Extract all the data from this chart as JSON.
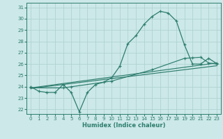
{
  "xlabel": "Humidex (Indice chaleur)",
  "bg_color": "#cce8e8",
  "grid_color": "#aacfcf",
  "line_color": "#2d7d6e",
  "xlim": [
    -0.5,
    23.5
  ],
  "ylim": [
    21.6,
    31.4
  ],
  "yticks": [
    22,
    23,
    24,
    25,
    26,
    27,
    28,
    29,
    30,
    31
  ],
  "xticks": [
    0,
    1,
    2,
    3,
    4,
    5,
    6,
    7,
    8,
    9,
    10,
    11,
    12,
    13,
    14,
    15,
    16,
    17,
    18,
    19,
    20,
    21,
    22,
    23
  ],
  "line1_x": [
    0,
    1,
    2,
    3,
    4,
    5,
    6,
    7,
    8,
    9,
    10,
    11,
    12,
    13,
    14,
    15,
    16,
    17,
    18,
    19,
    20,
    21,
    22,
    23
  ],
  "line1_y": [
    24.0,
    23.6,
    23.5,
    23.5,
    24.2,
    23.5,
    21.8,
    23.5,
    24.2,
    24.4,
    24.8,
    25.8,
    27.8,
    28.5,
    29.5,
    30.2,
    30.65,
    30.5,
    29.8,
    27.7,
    26.0,
    26.0,
    26.5,
    26.05
  ],
  "line2_x": [
    0,
    4,
    5,
    10,
    15,
    19,
    20,
    21,
    22,
    23
  ],
  "line2_y": [
    23.9,
    23.9,
    24.0,
    24.5,
    25.5,
    26.5,
    26.55,
    26.6,
    26.1,
    26.0
  ],
  "line3_x": [
    0,
    23
  ],
  "line3_y": [
    23.85,
    25.85
  ],
  "line4_x": [
    0,
    23
  ],
  "line4_y": [
    23.9,
    26.1
  ]
}
